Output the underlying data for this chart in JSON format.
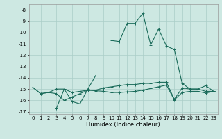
{
  "title": "",
  "xlabel": "Humidex (Indice chaleur)",
  "xlim": [
    -0.5,
    23.5
  ],
  "ylim": [
    -17.2,
    -7.5
  ],
  "yticks": [
    -8,
    -9,
    -10,
    -11,
    -12,
    -13,
    -14,
    -15,
    -16,
    -17
  ],
  "xticks": [
    0,
    1,
    2,
    3,
    4,
    5,
    6,
    7,
    8,
    9,
    10,
    11,
    12,
    13,
    14,
    15,
    16,
    17,
    18,
    19,
    20,
    21,
    22,
    23
  ],
  "bg_color": "#cde8e2",
  "grid_color": "#aacec7",
  "line_color": "#1a6b5a",
  "series": [
    [
      null,
      null,
      null,
      -16.7,
      -15.0,
      -16.1,
      -16.3,
      -15.0,
      -13.8,
      null,
      null,
      null,
      null,
      null,
      null,
      null,
      null,
      null,
      null,
      null,
      null,
      null,
      null,
      null
    ],
    [
      -14.85,
      -15.4,
      -15.3,
      -15.0,
      -15.0,
      -15.3,
      -15.2,
      -15.1,
      -15.1,
      -14.9,
      -14.8,
      -14.7,
      -14.6,
      -14.6,
      -14.5,
      -14.5,
      -14.4,
      -14.4,
      -15.9,
      -14.9,
      -15.0,
      -15.0,
      -15.2,
      -15.2
    ],
    [
      -14.85,
      -15.4,
      -15.3,
      -15.4,
      -16.0,
      -15.7,
      -15.4,
      -15.1,
      -15.15,
      -15.2,
      -15.3,
      -15.3,
      -15.25,
      -15.2,
      -15.1,
      -14.95,
      -14.8,
      -14.65,
      -15.95,
      -15.3,
      -15.2,
      -15.2,
      -15.35,
      -15.2
    ],
    [
      -14.85,
      null,
      null,
      null,
      null,
      null,
      null,
      null,
      null,
      null,
      -10.7,
      -10.8,
      -9.2,
      -9.2,
      -8.3,
      -11.1,
      -9.7,
      -11.2,
      -11.5,
      -14.5,
      -15.0,
      -15.0,
      -14.7,
      -15.2
    ]
  ],
  "marker": "+",
  "markersize": 3,
  "linewidth": 0.8
}
